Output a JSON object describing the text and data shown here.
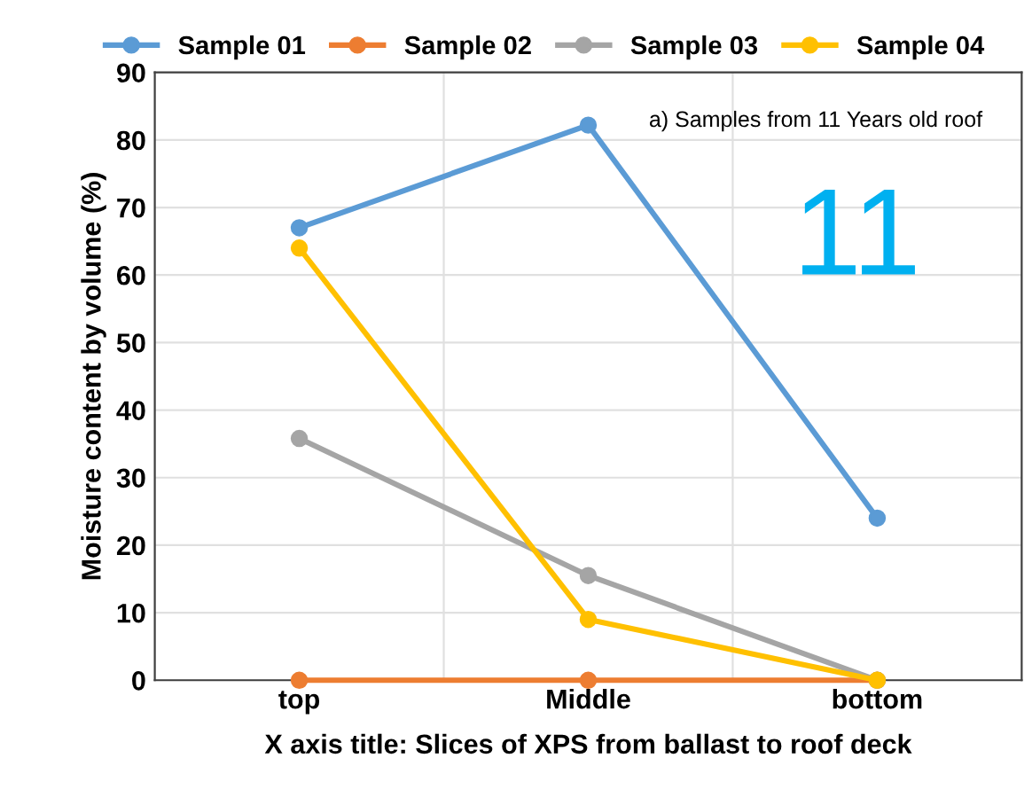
{
  "chart_data": {
    "type": "line",
    "xlabel": "X axis title: Slices of XPS from ballast to roof deck",
    "ylabel": "Moisture content by volume (%)",
    "categories": [
      "top",
      "Middle",
      "bottom"
    ],
    "series": [
      {
        "name": "Sample 01",
        "color": "#5b9bd5",
        "values": [
          67,
          82.2,
          24
        ]
      },
      {
        "name": "Sample 02",
        "color": "#ed7d31",
        "values": [
          0,
          0,
          0
        ]
      },
      {
        "name": "Sample 03",
        "color": "#a5a5a5",
        "values": [
          35.8,
          15.5,
          0
        ]
      },
      {
        "name": "Sample 04",
        "color": "#ffc000",
        "values": [
          64,
          9,
          0
        ]
      }
    ],
    "ylim": [
      0,
      90
    ],
    "yticks": [
      0,
      10,
      20,
      30,
      40,
      50,
      60,
      70,
      80,
      90
    ],
    "grid": true,
    "legend": "top",
    "marker": "circle",
    "line_style": "solid",
    "annotations": [
      "a) Samples from 11 Years old roof",
      "11"
    ]
  }
}
